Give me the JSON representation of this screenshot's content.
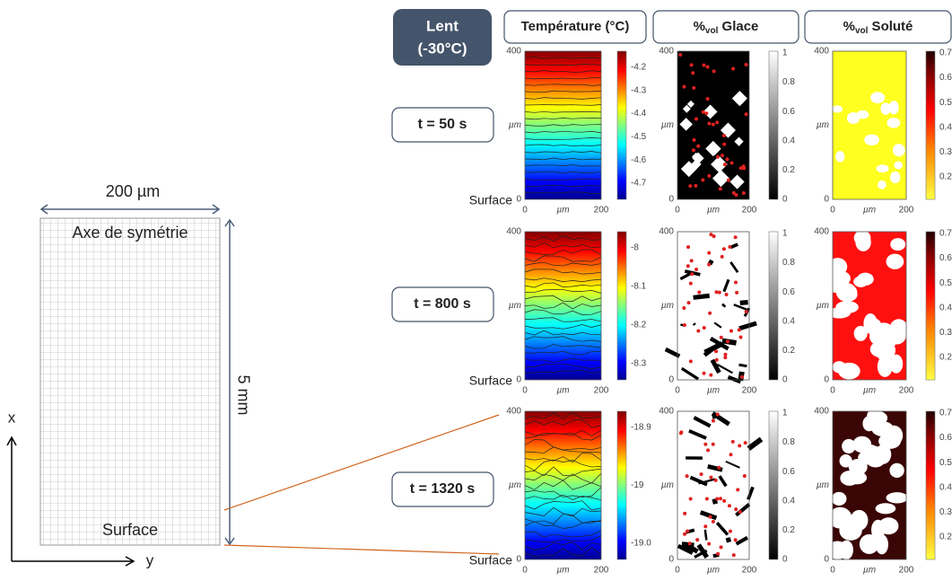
{
  "left": {
    "width_label": "200 µm",
    "top_label": "Axe de symétrie",
    "height_label": "5 mm",
    "bottom_label": "Surface",
    "x_axis": "x",
    "y_axis": "y"
  },
  "header": {
    "mode": "Lent",
    "condition": "(-30°C)"
  },
  "columns": [
    {
      "label": "Température (°C)"
    },
    {
      "prefix": "%",
      "sub": "vol",
      "label": " Glace"
    },
    {
      "prefix": "%",
      "sub": "vol",
      "label": " Soluté"
    }
  ],
  "axis": {
    "y_top": "400",
    "y_zero": "0",
    "x_zero": "0",
    "x_end": "200",
    "unit": "µm",
    "surface": "Surface"
  },
  "glace_ticks": [
    "1",
    "0.8",
    "0.6",
    "0.4",
    "0.2",
    "0"
  ],
  "solute_ticks": [
    "0.7",
    "0.6",
    "0.5",
    "0.4",
    "0.3",
    "0.2"
  ],
  "rows": [
    {
      "label": "t = 50 s",
      "temperature_ticks": [
        "-4.2",
        "-4.3",
        "-4.4",
        "-4.5",
        "-4.6",
        "-4.7"
      ]
    },
    {
      "label": "t = 800 s",
      "temperature_ticks": [
        "-8",
        "-8.1",
        "-8.2",
        "-8.3"
      ]
    },
    {
      "label": "t = 1320 s",
      "temperature_ticks": [
        "-18.9",
        "-19",
        "-19.0"
      ]
    }
  ]
}
